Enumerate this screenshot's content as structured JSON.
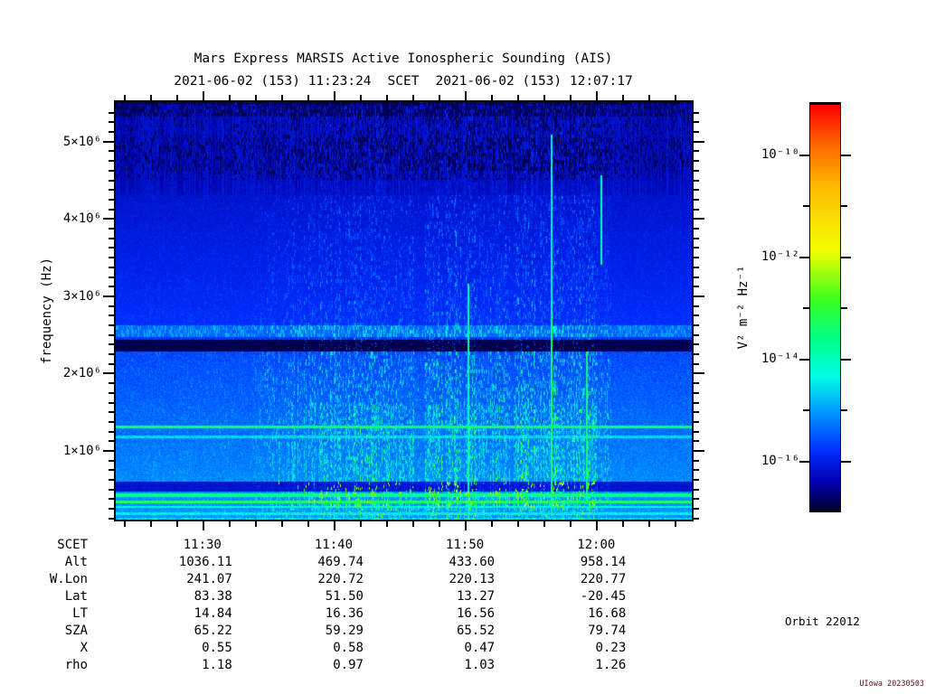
{
  "title": "Mars Express MARSIS Active Ionospheric Sounding (AIS)",
  "scet_header": {
    "start": "2021-06-02 (153) 11:23:24",
    "separator": "SCET",
    "end": "2021-06-02 (153) 12:07:17"
  },
  "orbit_label": "Orbit 22012",
  "stamp": "UIowa 20230503",
  "colors": {
    "background": "#ffffff",
    "text": "#000000",
    "stamp_text": "#551111",
    "spectrogram_background_blue": "#0010c8"
  },
  "chart_data": {
    "type": "heatmap",
    "title": "Mars Express MARSIS Active Ionospheric Sounding (AIS)",
    "ylabel": "frequency (Hz)",
    "x_axis": {
      "start_scet": "11:23:24",
      "end_scet": "12:07:17",
      "tick_labels": [
        "11:30",
        "11:40",
        "11:50",
        "12:00"
      ],
      "tick_minutes_after_11": [
        30,
        40,
        50,
        60
      ],
      "minor_tick_interval_minutes": 2
    },
    "y_axis": {
      "label": "frequency (Hz)",
      "range_hz": [
        100000,
        5500000
      ],
      "tick_labels": [
        "1×10⁶",
        "2×10⁶",
        "3×10⁶",
        "4×10⁶",
        "5×10⁶"
      ],
      "tick_values_mhz": [
        1,
        2,
        3,
        4,
        5
      ],
      "minor_tick_interval_mhz": 0.125,
      "scale": "linear"
    },
    "colorbar": {
      "label": "V² m⁻² Hz⁻¹",
      "tick_labels": [
        "10⁻¹⁰",
        "10⁻¹²",
        "10⁻¹⁴",
        "10⁻¹⁶"
      ],
      "tick_exponents": [
        -10,
        -12,
        -14,
        -16
      ],
      "range_exponents": [
        -17,
        -9
      ],
      "scale": "log",
      "gradient_top_to_bottom": [
        {
          "pos": 0,
          "color": "#ff0000"
        },
        {
          "pos": 9,
          "color": "#ff5f00"
        },
        {
          "pos": 20,
          "color": "#ffb900"
        },
        {
          "pos": 36,
          "color": "#f2ff00"
        },
        {
          "pos": 48,
          "color": "#3cff1e"
        },
        {
          "pos": 58,
          "color": "#00ff87"
        },
        {
          "pos": 67,
          "color": "#00ffe6"
        },
        {
          "pos": 76,
          "color": "#0096ff"
        },
        {
          "pos": 85,
          "color": "#0032ff"
        },
        {
          "pos": 93,
          "color": "#0000b4"
        },
        {
          "pos": 100,
          "color": "#000032"
        }
      ]
    },
    "grid": false,
    "visible_features": [
      "dark absorption band across all times near 2.35 MHz",
      "bright narrowband horizontal line near 1.30 MHz with fainter companion near 1.18 MHz",
      "cyan interference stripes and a dark band between ~0.2 and 0.6 MHz",
      "dense vertical ionospheric echo streaks from ~11:37 to ~11:58",
      "yellow-green echo traces below ~0.8 MHz in the active interval",
      "black receiver-noise streaks above ~4.5 MHz, densest near the top edge"
    ]
  },
  "ephemeris": {
    "rows": [
      {
        "label": "SCET",
        "values": [
          "11:30",
          "11:40",
          "11:50",
          "12:00"
        ]
      },
      {
        "label": "Alt",
        "values": [
          "1036.11",
          "469.74",
          "433.60",
          "958.14"
        ]
      },
      {
        "label": "W.Lon",
        "values": [
          "241.07",
          "220.72",
          "220.13",
          "220.77"
        ]
      },
      {
        "label": "Lat",
        "values": [
          "83.38",
          "51.50",
          "13.27",
          "-20.45"
        ]
      },
      {
        "label": "LT",
        "values": [
          "14.84",
          "16.36",
          "16.56",
          "16.68"
        ]
      },
      {
        "label": "SZA",
        "values": [
          "65.22",
          "59.29",
          "65.52",
          "79.74"
        ]
      },
      {
        "label": "X",
        "values": [
          "0.55",
          "0.58",
          "0.47",
          "0.23"
        ]
      },
      {
        "label": "rho",
        "values": [
          "1.18",
          "0.97",
          "1.03",
          "1.26"
        ]
      }
    ]
  }
}
